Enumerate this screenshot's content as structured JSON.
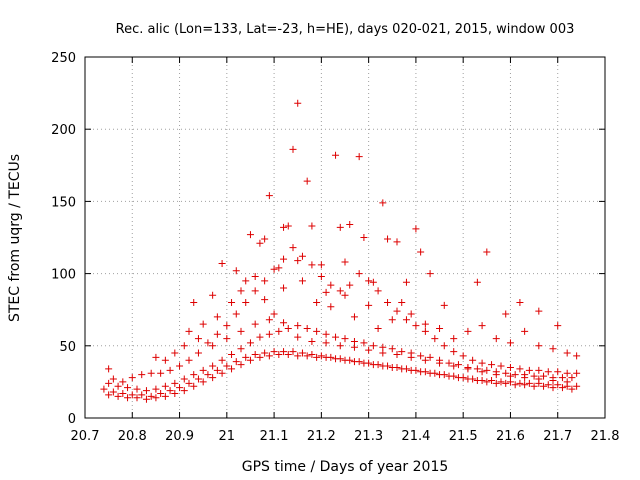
{
  "chart_data": {
    "type": "scatter",
    "title": "Rec. alic (Lon=133, Lat=-23, h=HE), days 020-021, 2015, window 003",
    "xlabel": "GPS time / Days of year 2015",
    "ylabel": "STEC from uqrg / TECUs",
    "xlim": [
      20.7,
      21.8
    ],
    "ylim": [
      0,
      250
    ],
    "xticks": [
      "20.7",
      "20.8",
      "20.9",
      "21",
      "21.1",
      "21.2",
      "21.3",
      "21.4",
      "21.5",
      "21.6",
      "21.7",
      "21.8"
    ],
    "yticks": [
      "0",
      "50",
      "100",
      "150",
      "200",
      "250"
    ],
    "grid": true,
    "marker": "+",
    "color": "#dd0000",
    "series": [
      {
        "points": [
          [
            20.75,
            34
          ],
          [
            20.76,
            27
          ],
          [
            20.78,
            25
          ],
          [
            20.8,
            28
          ],
          [
            20.82,
            30
          ],
          [
            20.84,
            31
          ],
          [
            20.86,
            31
          ],
          [
            20.88,
            33
          ],
          [
            20.9,
            36
          ],
          [
            20.92,
            40
          ],
          [
            20.94,
            45
          ],
          [
            20.96,
            52
          ],
          [
            20.98,
            58
          ],
          [
            21.0,
            64
          ],
          [
            21.02,
            72
          ],
          [
            21.04,
            80
          ],
          [
            21.06,
            88
          ],
          [
            21.08,
            95
          ],
          [
            21.1,
            103
          ],
          [
            21.12,
            110
          ],
          [
            21.14,
            118
          ],
          [
            21.16,
            112
          ],
          [
            21.18,
            106
          ],
          [
            21.2,
            98
          ],
          [
            21.22,
            92
          ],
          [
            21.24,
            88
          ],
          [
            21.26,
            92
          ],
          [
            21.28,
            100
          ],
          [
            21.3,
            95
          ],
          [
            21.32,
            88
          ],
          [
            21.34,
            80
          ],
          [
            21.36,
            74
          ],
          [
            21.38,
            68
          ],
          [
            21.4,
            64
          ],
          [
            21.42,
            60
          ],
          [
            21.44,
            55
          ],
          [
            21.46,
            50
          ],
          [
            21.48,
            46
          ],
          [
            21.5,
            43
          ],
          [
            21.52,
            40
          ],
          [
            21.54,
            38
          ],
          [
            21.56,
            37
          ],
          [
            21.58,
            36
          ],
          [
            21.6,
            35
          ],
          [
            21.62,
            34
          ],
          [
            21.64,
            33
          ],
          [
            21.66,
            33
          ],
          [
            21.68,
            32
          ],
          [
            21.7,
            32
          ],
          [
            21.72,
            31
          ],
          [
            21.74,
            31
          ],
          [
            20.75,
            24
          ],
          [
            20.77,
            22
          ],
          [
            20.79,
            21
          ],
          [
            20.81,
            20
          ],
          [
            20.83,
            19
          ],
          [
            20.85,
            20
          ],
          [
            20.87,
            22
          ],
          [
            20.89,
            24
          ],
          [
            20.91,
            27
          ],
          [
            20.93,
            30
          ],
          [
            20.95,
            33
          ],
          [
            20.97,
            36
          ],
          [
            20.99,
            40
          ],
          [
            21.01,
            44
          ],
          [
            21.03,
            48
          ],
          [
            21.05,
            52
          ],
          [
            21.07,
            56
          ],
          [
            21.09,
            58
          ],
          [
            21.11,
            60
          ],
          [
            21.13,
            62
          ],
          [
            21.15,
            64
          ],
          [
            21.17,
            62
          ],
          [
            21.19,
            60
          ],
          [
            21.21,
            58
          ],
          [
            21.23,
            56
          ],
          [
            21.25,
            55
          ],
          [
            21.27,
            53
          ],
          [
            21.29,
            52
          ],
          [
            21.31,
            50
          ],
          [
            21.33,
            49
          ],
          [
            21.35,
            48
          ],
          [
            21.37,
            46
          ],
          [
            21.39,
            45
          ],
          [
            21.41,
            43
          ],
          [
            21.43,
            42
          ],
          [
            21.45,
            40
          ],
          [
            21.47,
            38
          ],
          [
            21.49,
            37
          ],
          [
            21.51,
            35
          ],
          [
            21.53,
            34
          ],
          [
            21.55,
            33
          ],
          [
            21.57,
            32
          ],
          [
            21.59,
            31
          ],
          [
            21.61,
            30
          ],
          [
            21.63,
            30
          ],
          [
            21.65,
            29
          ],
          [
            21.67,
            29
          ],
          [
            21.69,
            28
          ],
          [
            21.71,
            28
          ],
          [
            21.73,
            28
          ],
          [
            20.74,
            20
          ],
          [
            20.76,
            18
          ],
          [
            20.78,
            17
          ],
          [
            20.8,
            16
          ],
          [
            20.82,
            16
          ],
          [
            20.84,
            15
          ],
          [
            20.86,
            17
          ],
          [
            20.88,
            19
          ],
          [
            20.9,
            21
          ],
          [
            20.92,
            24
          ],
          [
            20.94,
            27
          ],
          [
            20.96,
            30
          ],
          [
            20.98,
            33
          ],
          [
            21.0,
            36
          ],
          [
            21.02,
            39
          ],
          [
            21.04,
            42
          ],
          [
            21.06,
            44
          ],
          [
            21.08,
            45
          ],
          [
            21.1,
            46
          ],
          [
            21.12,
            46
          ],
          [
            21.14,
            46
          ],
          [
            21.16,
            45
          ],
          [
            21.18,
            44
          ],
          [
            21.2,
            43
          ],
          [
            21.22,
            42
          ],
          [
            21.24,
            41
          ],
          [
            21.26,
            40
          ],
          [
            21.28,
            39
          ],
          [
            21.3,
            38
          ],
          [
            21.32,
            37
          ],
          [
            21.34,
            36
          ],
          [
            21.36,
            35
          ],
          [
            21.38,
            34
          ],
          [
            21.4,
            33
          ],
          [
            21.42,
            32
          ],
          [
            21.44,
            31
          ],
          [
            21.46,
            30
          ],
          [
            21.48,
            29
          ],
          [
            21.5,
            28
          ],
          [
            21.52,
            27
          ],
          [
            21.54,
            26
          ],
          [
            21.56,
            26
          ],
          [
            21.58,
            25
          ],
          [
            21.6,
            25
          ],
          [
            21.62,
            24
          ],
          [
            21.64,
            24
          ],
          [
            21.66,
            24
          ],
          [
            21.68,
            23
          ],
          [
            21.7,
            23
          ],
          [
            21.72,
            22
          ],
          [
            21.74,
            22
          ],
          [
            20.75,
            16
          ],
          [
            20.77,
            15
          ],
          [
            20.79,
            14
          ],
          [
            20.81,
            14
          ],
          [
            20.83,
            13
          ],
          [
            20.85,
            14
          ],
          [
            20.87,
            15
          ],
          [
            20.89,
            17
          ],
          [
            20.91,
            19
          ],
          [
            20.93,
            22
          ],
          [
            20.95,
            25
          ],
          [
            20.97,
            28
          ],
          [
            20.99,
            31
          ],
          [
            21.01,
            34
          ],
          [
            21.03,
            37
          ],
          [
            21.05,
            40
          ],
          [
            21.07,
            42
          ],
          [
            21.09,
            43
          ],
          [
            21.11,
            44
          ],
          [
            21.13,
            44
          ],
          [
            21.15,
            43
          ],
          [
            21.17,
            43
          ],
          [
            21.19,
            42
          ],
          [
            21.21,
            42
          ],
          [
            21.23,
            41
          ],
          [
            21.25,
            40
          ],
          [
            21.27,
            39
          ],
          [
            21.29,
            38
          ],
          [
            21.31,
            37
          ],
          [
            21.33,
            36
          ],
          [
            21.35,
            35
          ],
          [
            21.37,
            34
          ],
          [
            21.39,
            33
          ],
          [
            21.41,
            32
          ],
          [
            21.43,
            31
          ],
          [
            21.45,
            30
          ],
          [
            21.47,
            29
          ],
          [
            21.49,
            28
          ],
          [
            21.51,
            27
          ],
          [
            21.53,
            26
          ],
          [
            21.55,
            25
          ],
          [
            21.57,
            24
          ],
          [
            21.59,
            24
          ],
          [
            21.61,
            23
          ],
          [
            21.63,
            23
          ],
          [
            21.65,
            22
          ],
          [
            21.67,
            22
          ],
          [
            21.69,
            21
          ],
          [
            21.71,
            21
          ],
          [
            21.73,
            20
          ],
          [
            20.92,
            60
          ],
          [
            20.93,
            80
          ],
          [
            20.97,
            85
          ],
          [
            20.99,
            107
          ],
          [
            21.02,
            102
          ],
          [
            21.04,
            95
          ],
          [
            21.05,
            127
          ],
          [
            21.07,
            121
          ],
          [
            21.08,
            124
          ],
          [
            21.09,
            154
          ],
          [
            21.11,
            104
          ],
          [
            21.12,
            132
          ],
          [
            21.13,
            133
          ],
          [
            21.14,
            186
          ],
          [
            21.15,
            218
          ],
          [
            21.15,
            109
          ],
          [
            21.17,
            164
          ],
          [
            21.18,
            133
          ],
          [
            21.2,
            106
          ],
          [
            21.21,
            87
          ],
          [
            21.23,
            182
          ],
          [
            21.24,
            132
          ],
          [
            21.25,
            108
          ],
          [
            21.26,
            134
          ],
          [
            21.28,
            181
          ],
          [
            21.29,
            125
          ],
          [
            21.31,
            94
          ],
          [
            21.33,
            149
          ],
          [
            21.34,
            124
          ],
          [
            21.36,
            122
          ],
          [
            21.38,
            94
          ],
          [
            21.4,
            131
          ],
          [
            21.41,
            115
          ],
          [
            21.43,
            100
          ],
          [
            21.46,
            78
          ],
          [
            21.53,
            94
          ],
          [
            21.55,
            115
          ],
          [
            21.59,
            72
          ],
          [
            21.62,
            80
          ],
          [
            21.66,
            74
          ],
          [
            21.7,
            64
          ],
          [
            20.95,
            65
          ],
          [
            20.98,
            70
          ],
          [
            21.01,
            80
          ],
          [
            21.03,
            88
          ],
          [
            21.06,
            98
          ],
          [
            21.08,
            82
          ],
          [
            21.1,
            72
          ],
          [
            21.12,
            90
          ],
          [
            21.16,
            95
          ],
          [
            21.19,
            80
          ],
          [
            21.22,
            77
          ],
          [
            21.25,
            85
          ],
          [
            21.27,
            70
          ],
          [
            21.3,
            78
          ],
          [
            21.32,
            62
          ],
          [
            21.35,
            68
          ],
          [
            21.37,
            80
          ],
          [
            21.39,
            72
          ],
          [
            21.42,
            65
          ],
          [
            21.45,
            62
          ],
          [
            21.48,
            55
          ],
          [
            21.51,
            60
          ],
          [
            21.54,
            64
          ],
          [
            21.57,
            55
          ],
          [
            21.6,
            52
          ],
          [
            21.63,
            60
          ],
          [
            21.66,
            50
          ],
          [
            21.69,
            48
          ],
          [
            21.72,
            45
          ],
          [
            21.74,
            43
          ],
          [
            20.85,
            42
          ],
          [
            20.87,
            40
          ],
          [
            20.89,
            45
          ],
          [
            20.91,
            50
          ],
          [
            20.94,
            55
          ],
          [
            20.97,
            50
          ],
          [
            21.0,
            55
          ],
          [
            21.03,
            60
          ],
          [
            21.06,
            65
          ],
          [
            21.09,
            68
          ],
          [
            21.12,
            66
          ],
          [
            21.15,
            56
          ],
          [
            21.18,
            53
          ],
          [
            21.21,
            52
          ],
          [
            21.24,
            50
          ],
          [
            21.27,
            49
          ],
          [
            21.3,
            47
          ],
          [
            21.33,
            45
          ],
          [
            21.36,
            44
          ],
          [
            21.39,
            42
          ],
          [
            21.42,
            40
          ],
          [
            21.45,
            38
          ],
          [
            21.48,
            36
          ],
          [
            21.51,
            34
          ],
          [
            21.54,
            32
          ],
          [
            21.57,
            30
          ],
          [
            21.6,
            29
          ],
          [
            21.63,
            28
          ],
          [
            21.66,
            27
          ],
          [
            21.69,
            26
          ],
          [
            21.72,
            25
          ]
        ]
      }
    ]
  }
}
